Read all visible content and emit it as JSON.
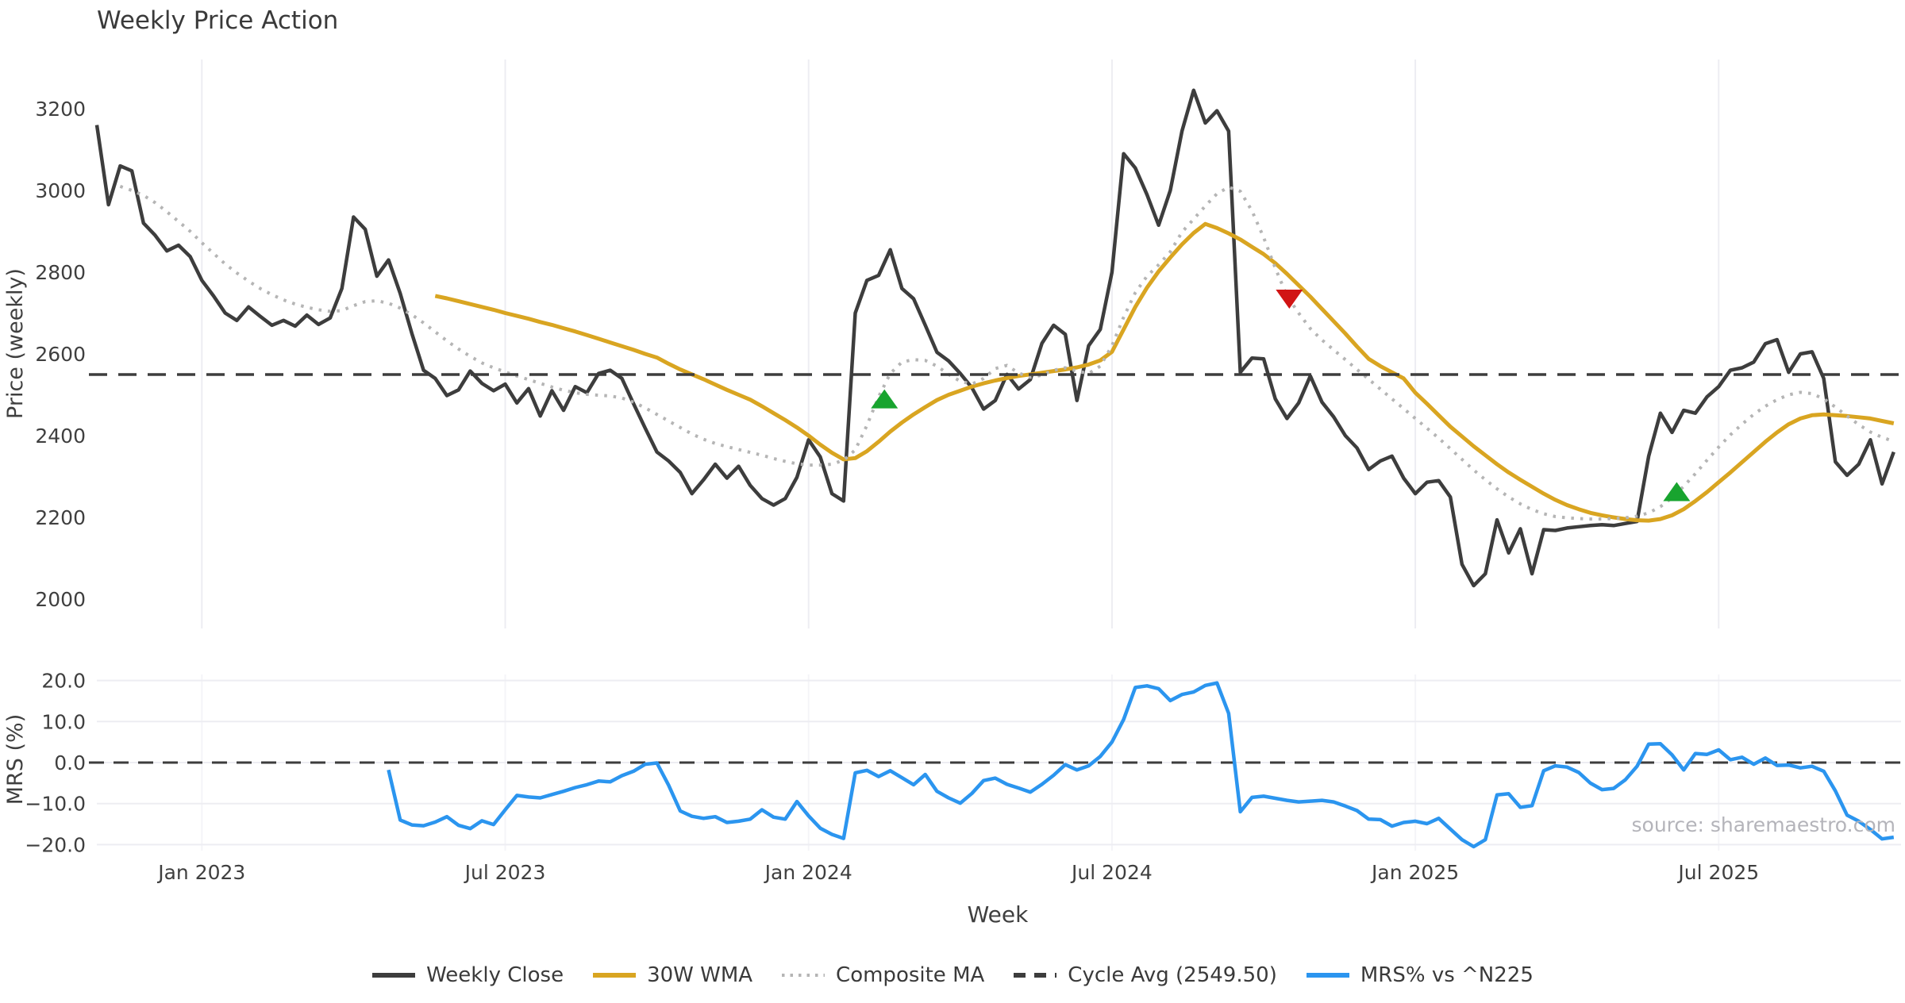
{
  "title": "Weekly Price Action",
  "source_note": "source: sharemaestro.com",
  "colors": {
    "close": "#3d3d3d",
    "wma": "#d9a521",
    "composite": "#b5b5b5",
    "cycle": "#3d3d3d",
    "mrs": "#2b95ef",
    "marker_up": "#18a42f",
    "marker_down": "#d11414",
    "grid": "#ededf2",
    "tick_text": "#3f3f3f",
    "muted_text": "#b4b4ba"
  },
  "legend": [
    {
      "label": "Weekly Close",
      "style": "solid",
      "color_key": "close"
    },
    {
      "label": "30W WMA",
      "style": "solid",
      "color_key": "wma"
    },
    {
      "label": "Composite MA",
      "style": "dotted",
      "color_key": "composite"
    },
    {
      "label": "Cycle Avg (2549.50)",
      "style": "dashed",
      "color_key": "cycle"
    },
    {
      "label": "MRS% vs ^N225",
      "style": "solid",
      "color_key": "mrs"
    }
  ],
  "chart_data": [
    {
      "type": "line",
      "title": "Weekly Price Action",
      "xlabel": "Week",
      "ylabel": "Price (weekly)",
      "x_unit": "week_index",
      "n_points": 155,
      "ylim": [
        1950,
        3300
      ],
      "yticks": {
        "values": [
          3200,
          3000,
          2800,
          2600,
          2400,
          2200,
          2000
        ],
        "labels": [
          "3200",
          "3000",
          "2800",
          "2600",
          "2400",
          "2200",
          "2000"
        ]
      },
      "xticks": [
        {
          "week": 9,
          "label": "Jan 2023"
        },
        {
          "week": 35,
          "label": "Jul 2023"
        },
        {
          "week": 61,
          "label": "Jan 2024"
        },
        {
          "week": 87,
          "label": "Jul 2024"
        },
        {
          "week": 113,
          "label": "Jan 2025"
        },
        {
          "week": 139,
          "label": "Jul 2025"
        }
      ],
      "grid": "vertical",
      "legend_position": "bottom-center",
      "series": [
        {
          "name": "Weekly Close",
          "style": "solid",
          "color_key": "close",
          "width": 4.5,
          "values": [
            3160,
            2965,
            3060,
            3048,
            2920,
            2890,
            2852,
            2866,
            2838,
            2780,
            2742,
            2700,
            2682,
            2715,
            2692,
            2670,
            2682,
            2668,
            2695,
            2672,
            2688,
            2760,
            2935,
            2905,
            2790,
            2830,
            2748,
            2650,
            2560,
            2540,
            2498,
            2512,
            2558,
            2528,
            2510,
            2526,
            2480,
            2515,
            2448,
            2510,
            2462,
            2520,
            2505,
            2552,
            2560,
            2540,
            2478,
            2418,
            2360,
            2338,
            2310,
            2258,
            2292,
            2330,
            2296,
            2325,
            2278,
            2246,
            2230,
            2246,
            2298,
            2390,
            2348,
            2258,
            2240,
            2700,
            2780,
            2792,
            2855,
            2760,
            2735,
            2670,
            2604,
            2583,
            2552,
            2517,
            2465,
            2486,
            2550,
            2514,
            2537,
            2626,
            2670,
            2648,
            2486,
            2620,
            2660,
            2800,
            3090,
            3055,
            2990,
            2915,
            3000,
            3145,
            3245,
            3165,
            3195,
            3145,
            2555,
            2590,
            2588,
            2490,
            2442,
            2480,
            2546,
            2482,
            2446,
            2400,
            2370,
            2317,
            2338,
            2350,
            2296,
            2258,
            2286,
            2290,
            2250,
            2085,
            2033,
            2062,
            2194,
            2113,
            2172,
            2062,
            2170,
            2168,
            2174,
            2177,
            2180,
            2182,
            2180,
            2185,
            2190,
            2350,
            2455,
            2408,
            2462,
            2455,
            2495,
            2520,
            2560,
            2566,
            2580,
            2625,
            2635,
            2555,
            2600,
            2605,
            2540,
            2336,
            2303,
            2330,
            2390,
            2282,
            2360
          ]
        },
        {
          "name": "30W WMA",
          "style": "solid",
          "color_key": "wma",
          "width": 5,
          "values": [
            null,
            null,
            null,
            null,
            null,
            null,
            null,
            null,
            null,
            null,
            null,
            null,
            null,
            null,
            null,
            null,
            null,
            null,
            null,
            null,
            null,
            null,
            null,
            null,
            null,
            null,
            null,
            null,
            null,
            2742,
            2736,
            2729,
            2722,
            2715,
            2708,
            2700,
            2693,
            2686,
            2678,
            2671,
            2663,
            2655,
            2646,
            2637,
            2628,
            2619,
            2610,
            2600,
            2591,
            2576,
            2562,
            2550,
            2538,
            2525,
            2512,
            2500,
            2488,
            2472,
            2455,
            2438,
            2420,
            2400,
            2378,
            2358,
            2342,
            2345,
            2362,
            2385,
            2410,
            2432,
            2452,
            2470,
            2487,
            2500,
            2510,
            2520,
            2528,
            2535,
            2541,
            2546,
            2550,
            2554,
            2558,
            2562,
            2567,
            2574,
            2584,
            2605,
            2660,
            2715,
            2762,
            2802,
            2836,
            2868,
            2896,
            2918,
            2908,
            2895,
            2880,
            2862,
            2844,
            2822,
            2796,
            2768,
            2740,
            2710,
            2680,
            2650,
            2618,
            2588,
            2570,
            2555,
            2540,
            2505,
            2478,
            2450,
            2422,
            2398,
            2374,
            2352,
            2330,
            2310,
            2292,
            2275,
            2258,
            2243,
            2230,
            2220,
            2211,
            2205,
            2200,
            2196,
            2193,
            2192,
            2196,
            2205,
            2220,
            2240,
            2262,
            2286,
            2310,
            2335,
            2360,
            2385,
            2408,
            2428,
            2442,
            2450,
            2452,
            2450,
            2448,
            2445,
            2442,
            2436,
            2430
          ]
        },
        {
          "name": "Composite MA",
          "style": "dotted",
          "color_key": "composite",
          "width": 4,
          "values": [
            null,
            null,
            3010,
            3000,
            2988,
            2970,
            2948,
            2924,
            2900,
            2872,
            2846,
            2820,
            2798,
            2778,
            2760,
            2745,
            2732,
            2722,
            2714,
            2708,
            2704,
            2706,
            2718,
            2728,
            2730,
            2724,
            2712,
            2696,
            2676,
            2654,
            2632,
            2612,
            2594,
            2578,
            2566,
            2556,
            2546,
            2537,
            2528,
            2519,
            2511,
            2505,
            2501,
            2499,
            2497,
            2492,
            2482,
            2468,
            2452,
            2436,
            2420,
            2404,
            2391,
            2381,
            2373,
            2366,
            2359,
            2352,
            2344,
            2337,
            2331,
            2328,
            2328,
            2330,
            2340,
            2365,
            2425,
            2495,
            2552,
            2580,
            2586,
            2584,
            2570,
            2550,
            2533,
            2526,
            2540,
            2564,
            2572,
            2553,
            2543,
            2548,
            2560,
            2566,
            2558,
            2552,
            2570,
            2620,
            2690,
            2750,
            2790,
            2818,
            2850,
            2898,
            2930,
            2962,
            2992,
            3008,
            2998,
            2950,
            2885,
            2810,
            2742,
            2700,
            2662,
            2634,
            2610,
            2586,
            2562,
            2538,
            2514,
            2490,
            2466,
            2442,
            2418,
            2394,
            2368,
            2342,
            2316,
            2292,
            2270,
            2250,
            2233,
            2219,
            2209,
            2202,
            2199,
            2197,
            2196,
            2196,
            2197,
            2199,
            2203,
            2211,
            2226,
            2248,
            2276,
            2307,
            2340,
            2372,
            2402,
            2428,
            2452,
            2472,
            2488,
            2500,
            2506,
            2503,
            2490,
            2470,
            2448,
            2427,
            2409,
            2396,
            2386
          ]
        },
        {
          "name": "Cycle Avg",
          "style": "dashed",
          "color_key": "cycle",
          "width": 3.5,
          "constant": 2549.5
        }
      ],
      "markers": [
        {
          "week": 67.5,
          "price": 2490,
          "dir": "up",
          "color_key": "marker_up"
        },
        {
          "week": 102.2,
          "price": 2734,
          "dir": "down",
          "color_key": "marker_down"
        },
        {
          "week": 135.4,
          "price": 2263,
          "dir": "up",
          "color_key": "marker_up"
        }
      ]
    },
    {
      "type": "line",
      "ylabel": "MRS (%)",
      "ylim": [
        -23,
        22
      ],
      "yticks": {
        "values": [
          20,
          10,
          0,
          -10,
          -20
        ],
        "labels": [
          "20.0",
          "10.0",
          "0.0",
          "−10.0",
          "−20.0"
        ]
      },
      "grid": "both",
      "zero_line_dashed": true,
      "series": [
        {
          "name": "MRS% vs ^N225",
          "style": "solid",
          "color_key": "mrs",
          "width": 4.5,
          "values": [
            null,
            null,
            null,
            null,
            null,
            null,
            null,
            null,
            null,
            null,
            null,
            null,
            null,
            null,
            null,
            null,
            null,
            null,
            null,
            null,
            null,
            null,
            null,
            null,
            null,
            -1.8,
            -14.0,
            -15.2,
            -15.4,
            -14.5,
            -13.2,
            -15.3,
            -16.1,
            -14.2,
            -15.1,
            -11.5,
            -8.0,
            -8.4,
            -8.6,
            -7.8,
            -7.0,
            -6.1,
            -5.4,
            -4.5,
            -4.7,
            -3.2,
            -2.1,
            -0.4,
            -0.1,
            -5.5,
            -11.8,
            -13.1,
            -13.6,
            -13.2,
            -14.6,
            -14.3,
            -13.8,
            -11.5,
            -13.3,
            -13.8,
            -9.5,
            -13.0,
            -16.0,
            -17.5,
            -18.5,
            -2.5,
            -1.9,
            -3.4,
            -2.0,
            -3.7,
            -5.4,
            -2.9,
            -7.0,
            -8.6,
            -9.9,
            -7.5,
            -4.4,
            -3.8,
            -5.3,
            -6.2,
            -7.2,
            -5.3,
            -3.1,
            -0.5,
            -1.8,
            -0.8,
            1.5,
            5.0,
            10.5,
            18.3,
            18.7,
            18.0,
            15.1,
            16.6,
            17.2,
            18.8,
            19.4,
            12.0,
            -12.0,
            -8.5,
            -8.2,
            -8.7,
            -9.2,
            -9.6,
            -9.4,
            -9.2,
            -9.6,
            -10.6,
            -11.7,
            -13.8,
            -13.9,
            -15.5,
            -14.6,
            -14.3,
            -14.9,
            -13.6,
            -16.2,
            -18.8,
            -20.5,
            -18.8,
            -7.9,
            -7.6,
            -10.9,
            -10.5,
            -2.0,
            -0.8,
            -1.1,
            -2.4,
            -5.0,
            -6.6,
            -6.3,
            -4.2,
            -0.9,
            4.5,
            4.6,
            1.9,
            -1.8,
            2.2,
            2.0,
            3.1,
            0.7,
            1.3,
            -0.4,
            1.1,
            -0.7,
            -0.6,
            -1.3,
            -0.9,
            -2.1,
            -6.9,
            -12.8,
            -14.3,
            -16.3,
            -18.6,
            -18.2
          ]
        }
      ]
    }
  ]
}
